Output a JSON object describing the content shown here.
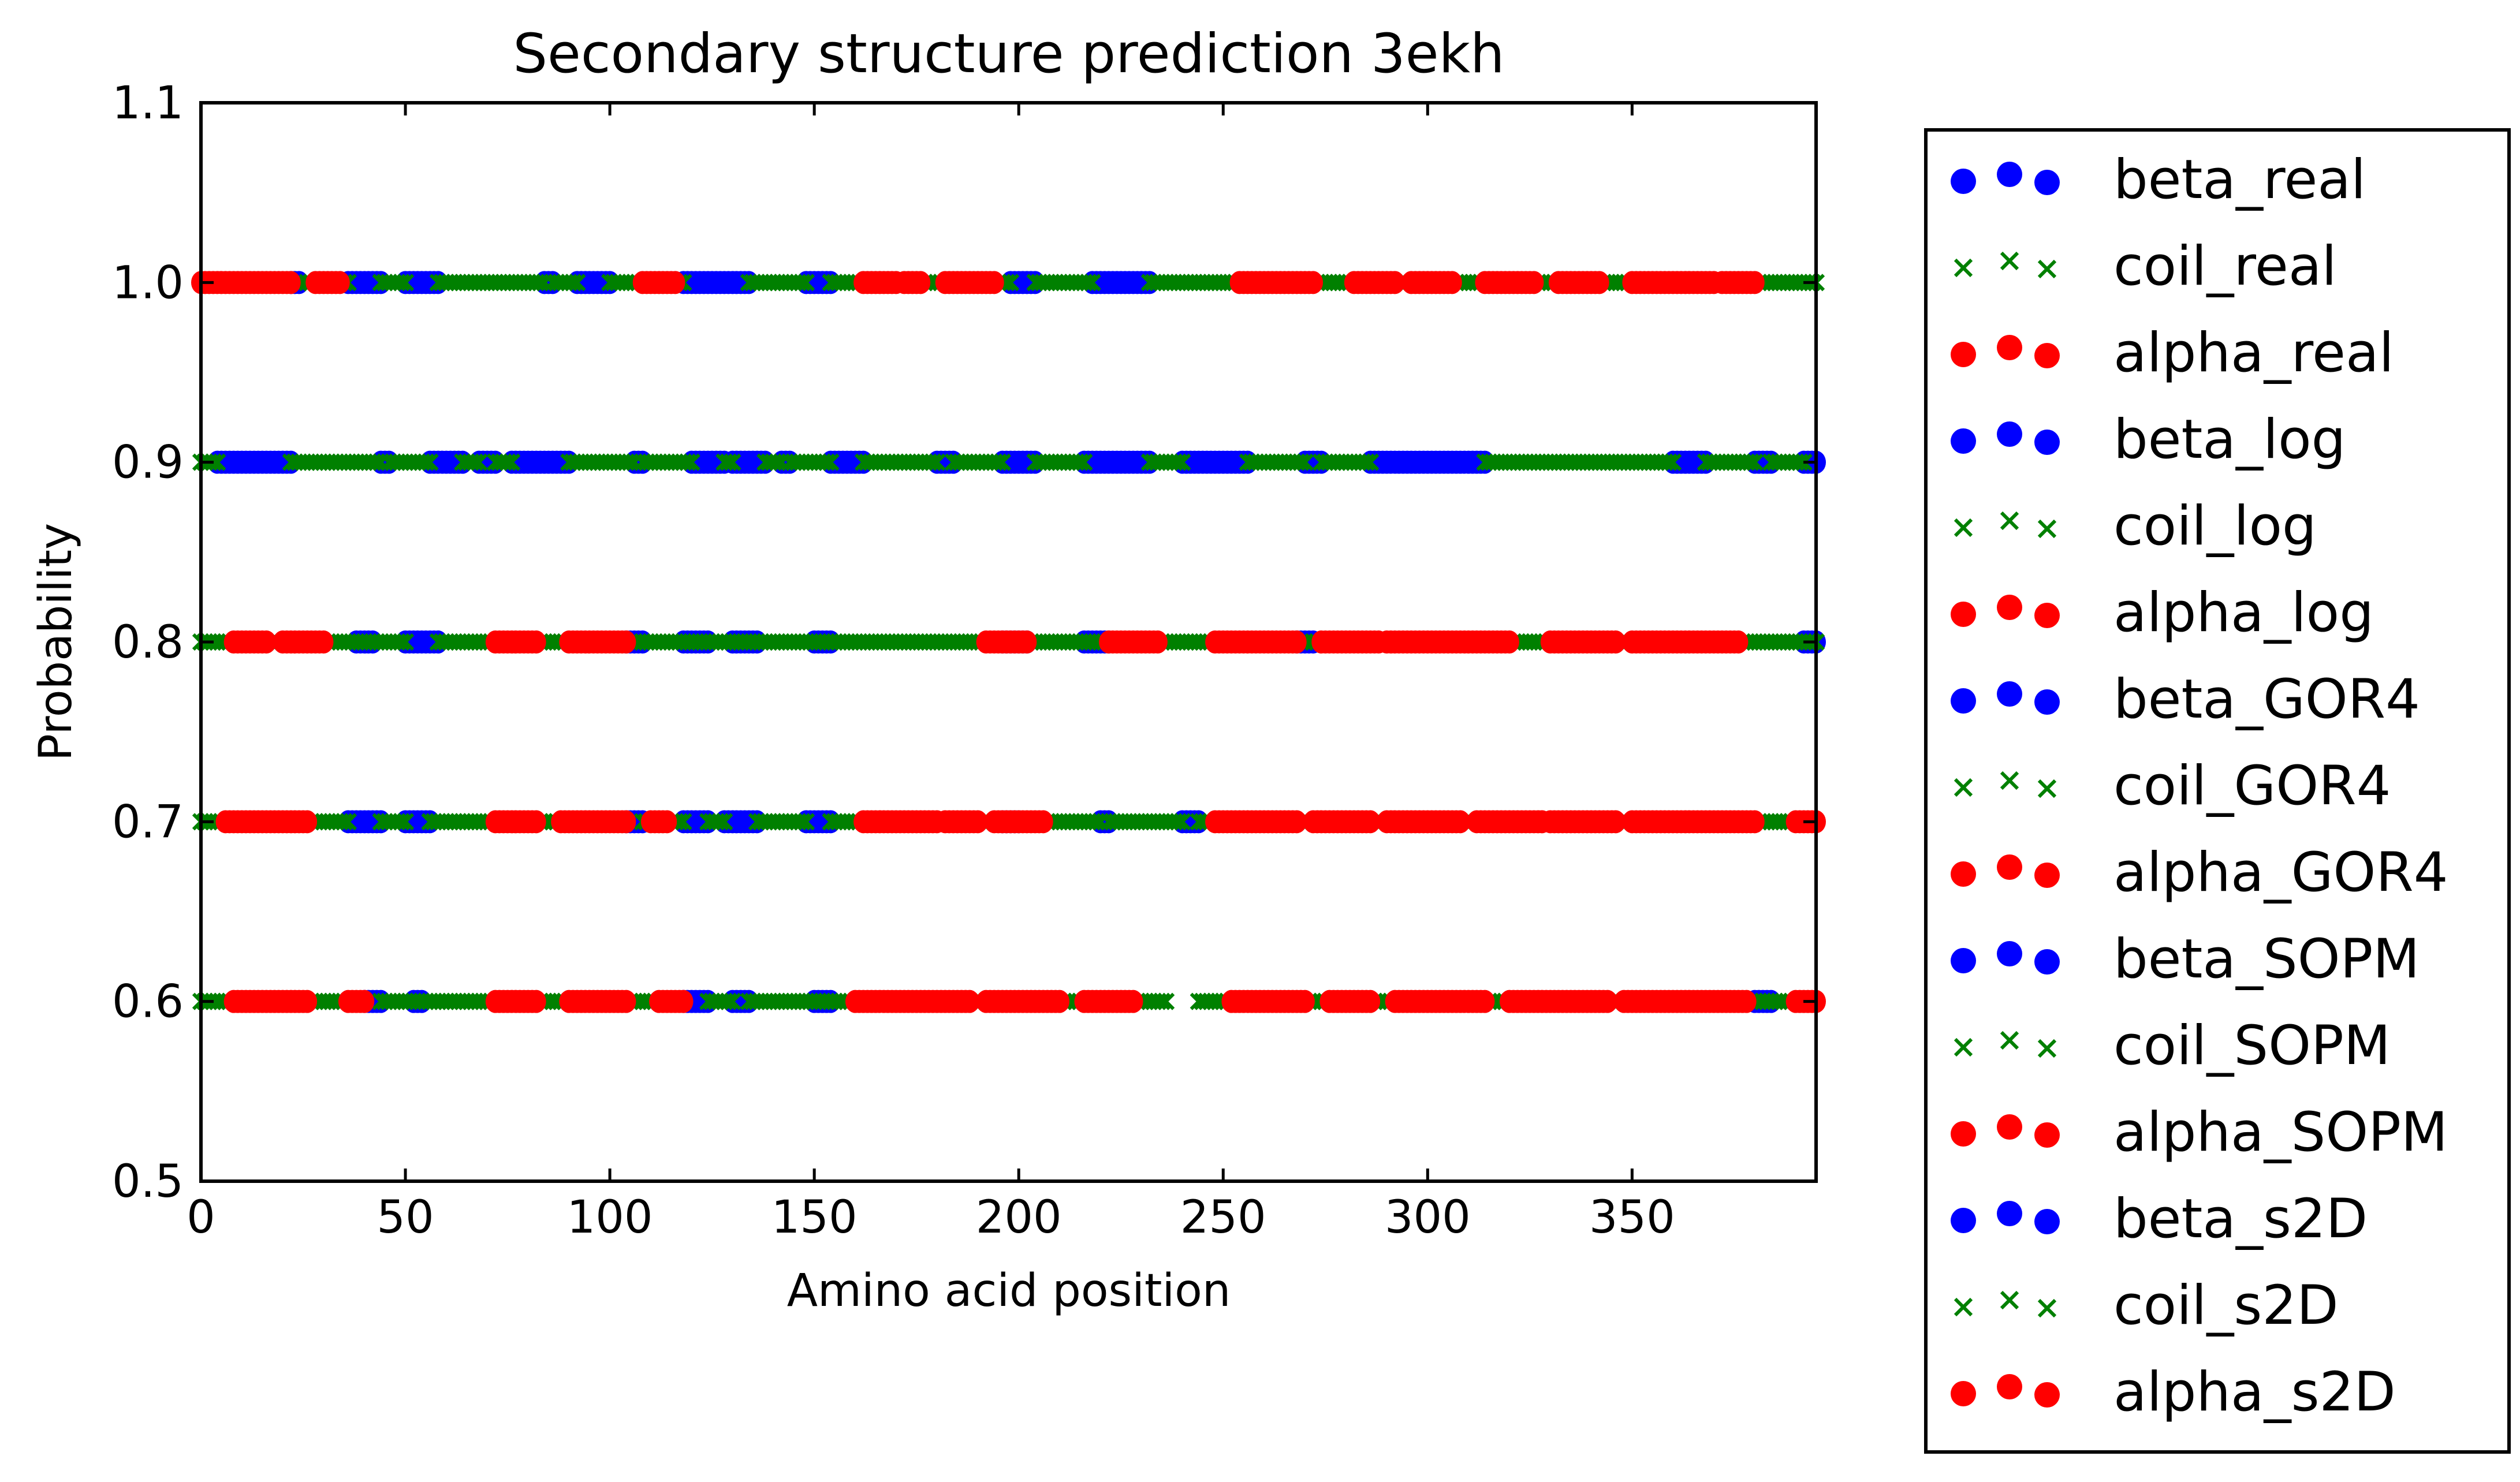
{
  "chart_data": {
    "type": "scatter",
    "title": "Secondary structure prediction 3ekh",
    "xlabel": "Amino acid position",
    "ylabel": "Probability",
    "xlim": [
      0,
      395
    ],
    "ylim": [
      0.5,
      1.1
    ],
    "xticks": [
      0,
      50,
      100,
      150,
      200,
      250,
      300,
      350
    ],
    "xtick_labels": [
      "0",
      "50",
      "100",
      "150",
      "200",
      "250",
      "300",
      "350"
    ],
    "yticks": [
      0.5,
      0.6,
      0.7,
      0.8,
      0.9,
      1.0,
      1.1
    ],
    "ytick_labels": [
      "0.5",
      "0.6",
      "0.7",
      "0.8",
      "0.9",
      "1.0",
      "1.1"
    ],
    "grid": false,
    "legend_position": "outside-right",
    "colors": {
      "beta": "#0000ff",
      "coil": "#008000",
      "alpha": "#ff0000"
    },
    "series": [
      {
        "name": "beta_real",
        "marker": "circle",
        "color": "#0000ff",
        "y": 1.0,
        "segments": [
          [
            22,
            24
          ],
          [
            36,
            44
          ],
          [
            50,
            58
          ],
          [
            84,
            86
          ],
          [
            92,
            100
          ],
          [
            118,
            134
          ],
          [
            148,
            154
          ],
          [
            198,
            204
          ],
          [
            218,
            232
          ]
        ]
      },
      {
        "name": "coil_real",
        "marker": "x",
        "color": "#008000",
        "y": 1.0,
        "segments": [
          [
            24,
            36
          ],
          [
            44,
            50
          ],
          [
            58,
            84
          ],
          [
            86,
            92
          ],
          [
            100,
            108
          ],
          [
            116,
            118
          ],
          [
            134,
            148
          ],
          [
            154,
            162
          ],
          [
            170,
            172
          ],
          [
            176,
            182
          ],
          [
            194,
            198
          ],
          [
            204,
            218
          ],
          [
            232,
            254
          ],
          [
            272,
            282
          ],
          [
            292,
            296
          ],
          [
            306,
            314
          ],
          [
            326,
            332
          ],
          [
            342,
            350
          ],
          [
            370,
            372
          ],
          [
            380,
            395
          ]
        ]
      },
      {
        "name": "alpha_real",
        "marker": "circle",
        "color": "#ff0000",
        "y": 1.0,
        "segments": [
          [
            0,
            22
          ],
          [
            28,
            34
          ],
          [
            108,
            116
          ],
          [
            162,
            170
          ],
          [
            172,
            176
          ],
          [
            182,
            194
          ],
          [
            254,
            272
          ],
          [
            282,
            292
          ],
          [
            296,
            306
          ],
          [
            314,
            326
          ],
          [
            332,
            342
          ],
          [
            350,
            370
          ],
          [
            372,
            380
          ]
        ]
      },
      {
        "name": "beta_log",
        "marker": "circle",
        "color": "#0000ff",
        "y": 0.9,
        "segments": [
          [
            4,
            22
          ],
          [
            44,
            46
          ],
          [
            56,
            64
          ],
          [
            68,
            72
          ],
          [
            76,
            90
          ],
          [
            106,
            108
          ],
          [
            120,
            128
          ],
          [
            130,
            138
          ],
          [
            142,
            144
          ],
          [
            154,
            162
          ],
          [
            180,
            184
          ],
          [
            196,
            204
          ],
          [
            216,
            232
          ],
          [
            240,
            256
          ],
          [
            270,
            274
          ],
          [
            286,
            314
          ],
          [
            360,
            368
          ],
          [
            380,
            384
          ],
          [
            392,
            395
          ]
        ]
      },
      {
        "name": "coil_log",
        "marker": "x",
        "color": "#008000",
        "y": 0.9,
        "segments": [
          [
            0,
            4
          ],
          [
            22,
            44
          ],
          [
            46,
            56
          ],
          [
            64,
            68
          ],
          [
            72,
            76
          ],
          [
            90,
            106
          ],
          [
            108,
            120
          ],
          [
            128,
            130
          ],
          [
            138,
            142
          ],
          [
            144,
            154
          ],
          [
            162,
            180
          ],
          [
            184,
            196
          ],
          [
            204,
            216
          ],
          [
            232,
            240
          ],
          [
            256,
            270
          ],
          [
            274,
            286
          ],
          [
            314,
            360
          ],
          [
            368,
            380
          ],
          [
            384,
            392
          ]
        ]
      },
      {
        "name": "alpha_log",
        "marker": "circle",
        "color": "#ff0000",
        "y": 0.9,
        "segments": []
      },
      {
        "name": "beta_GOR4",
        "marker": "circle",
        "color": "#0000ff",
        "y": 0.8,
        "segments": [
          [
            38,
            42
          ],
          [
            50,
            58
          ],
          [
            104,
            108
          ],
          [
            118,
            124
          ],
          [
            130,
            136
          ],
          [
            150,
            154
          ],
          [
            196,
            202
          ],
          [
            216,
            222
          ],
          [
            268,
            272
          ],
          [
            392,
            395
          ]
        ]
      },
      {
        "name": "coil_GOR4",
        "marker": "x",
        "color": "#008000",
        "y": 0.8,
        "segments": [
          [
            0,
            8
          ],
          [
            16,
            20
          ],
          [
            30,
            50
          ],
          [
            58,
            72
          ],
          [
            82,
            90
          ],
          [
            104,
            192
          ],
          [
            202,
            222
          ],
          [
            234,
            248
          ],
          [
            268,
            274
          ],
          [
            288,
            290
          ],
          [
            320,
            330
          ],
          [
            346,
            350
          ],
          [
            376,
            395
          ]
        ]
      },
      {
        "name": "alpha_GOR4",
        "marker": "circle",
        "color": "#ff0000",
        "y": 0.8,
        "segments": [
          [
            8,
            16
          ],
          [
            20,
            30
          ],
          [
            72,
            82
          ],
          [
            90,
            104
          ],
          [
            192,
            202
          ],
          [
            222,
            234
          ],
          [
            248,
            268
          ],
          [
            274,
            288
          ],
          [
            290,
            320
          ],
          [
            330,
            346
          ],
          [
            350,
            376
          ]
        ]
      },
      {
        "name": "beta_SOPM",
        "marker": "circle",
        "color": "#0000ff",
        "y": 0.7,
        "segments": [
          [
            36,
            44
          ],
          [
            50,
            56
          ],
          [
            104,
            108
          ],
          [
            118,
            124
          ],
          [
            128,
            136
          ],
          [
            148,
            154
          ],
          [
            196,
            200
          ],
          [
            220,
            222
          ],
          [
            240,
            244
          ]
        ]
      },
      {
        "name": "coil_SOPM",
        "marker": "x",
        "color": "#008000",
        "y": 0.7,
        "segments": [
          [
            0,
            6
          ],
          [
            26,
            36
          ],
          [
            44,
            50
          ],
          [
            56,
            72
          ],
          [
            82,
            88
          ],
          [
            108,
            110
          ],
          [
            114,
            118
          ],
          [
            124,
            128
          ],
          [
            136,
            148
          ],
          [
            154,
            162
          ],
          [
            180,
            182
          ],
          [
            190,
            194
          ],
          [
            206,
            220
          ],
          [
            222,
            240
          ],
          [
            244,
            248
          ],
          [
            268,
            272
          ],
          [
            286,
            290
          ],
          [
            308,
            312
          ],
          [
            328,
            330
          ],
          [
            346,
            350
          ],
          [
            380,
            390
          ]
        ]
      },
      {
        "name": "alpha_SOPM",
        "marker": "circle",
        "color": "#ff0000",
        "y": 0.7,
        "segments": [
          [
            6,
            26
          ],
          [
            72,
            82
          ],
          [
            88,
            104
          ],
          [
            110,
            114
          ],
          [
            162,
            180
          ],
          [
            182,
            190
          ],
          [
            194,
            206
          ],
          [
            248,
            268
          ],
          [
            272,
            286
          ],
          [
            290,
            308
          ],
          [
            312,
            328
          ],
          [
            330,
            346
          ],
          [
            350,
            380
          ],
          [
            390,
            395
          ]
        ]
      },
      {
        "name": "beta_s2D",
        "marker": "circle",
        "color": "#0000ff",
        "y": 0.6,
        "segments": [
          [
            40,
            44
          ],
          [
            52,
            54
          ],
          [
            118,
            124
          ],
          [
            130,
            134
          ],
          [
            150,
            154
          ],
          [
            380,
            384
          ]
        ]
      },
      {
        "name": "coil_s2D",
        "marker": "x",
        "color": "#008000",
        "y": 0.6,
        "segments": [
          [
            0,
            8
          ],
          [
            26,
            36
          ],
          [
            44,
            72
          ],
          [
            82,
            90
          ],
          [
            104,
            112
          ],
          [
            124,
            130
          ],
          [
            134,
            160
          ],
          [
            188,
            192
          ],
          [
            210,
            216
          ],
          [
            228,
            236
          ],
          [
            244,
            252
          ],
          [
            270,
            276
          ],
          [
            286,
            292
          ],
          [
            314,
            320
          ],
          [
            344,
            348
          ],
          [
            378,
            390
          ]
        ]
      },
      {
        "name": "alpha_s2D",
        "marker": "circle",
        "color": "#ff0000",
        "y": 0.6,
        "segments": [
          [
            8,
            26
          ],
          [
            36,
            40
          ],
          [
            72,
            82
          ],
          [
            90,
            104
          ],
          [
            112,
            118
          ],
          [
            160,
            188
          ],
          [
            192,
            210
          ],
          [
            216,
            228
          ],
          [
            252,
            270
          ],
          [
            276,
            286
          ],
          [
            292,
            314
          ],
          [
            320,
            344
          ],
          [
            348,
            378
          ],
          [
            390,
            395
          ]
        ]
      }
    ]
  }
}
